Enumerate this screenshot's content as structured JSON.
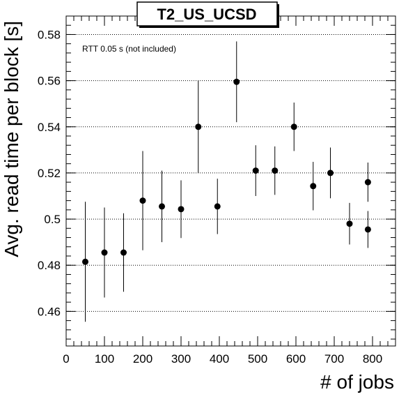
{
  "chart_data": {
    "type": "scatter",
    "title": "T2_US_UCSD",
    "xlabel": "# of jobs",
    "ylabel": "Avg. read time per block [s]",
    "annotation": "RTT 0.05 s (not included)",
    "xlim": [
      0,
      860
    ],
    "ylim": [
      0.445,
      0.588
    ],
    "xticks": [
      0,
      100,
      200,
      300,
      400,
      500,
      600,
      700,
      800
    ],
    "xtick_labels": [
      "0",
      "100",
      "200",
      "300",
      "400",
      "500",
      "600",
      "700",
      "800"
    ],
    "yticks": [
      0.46,
      0.48,
      0.5,
      0.52,
      0.54,
      0.56,
      0.58
    ],
    "ytick_labels": [
      "0.46",
      "0.48",
      "0.5",
      "0.52",
      "0.54",
      "0.56",
      "0.58"
    ],
    "grid": "horizontal dotted",
    "series": [
      {
        "points": [
          {
            "x": 50,
            "y": 0.4815,
            "err": 0.026
          },
          {
            "x": 100,
            "y": 0.4855,
            "err": 0.0195
          },
          {
            "x": 150,
            "y": 0.4855,
            "err": 0.017
          },
          {
            "x": 200,
            "y": 0.508,
            "err": 0.0215
          },
          {
            "x": 250,
            "y": 0.5055,
            "err": 0.0155
          },
          {
            "x": 300,
            "y": 0.5043,
            "err": 0.0125
          },
          {
            "x": 345,
            "y": 0.54,
            "err": 0.02
          },
          {
            "x": 395,
            "y": 0.5055,
            "err": 0.012
          },
          {
            "x": 445,
            "y": 0.5595,
            "err": 0.0175
          },
          {
            "x": 495,
            "y": 0.521,
            "err": 0.011
          },
          {
            "x": 545,
            "y": 0.521,
            "err": 0.0105
          },
          {
            "x": 595,
            "y": 0.54,
            "err": 0.0105
          },
          {
            "x": 645,
            "y": 0.5143,
            "err": 0.0105
          },
          {
            "x": 690,
            "y": 0.52,
            "err": 0.011
          },
          {
            "x": 740,
            "y": 0.498,
            "err": 0.009
          },
          {
            "x": 788,
            "y": 0.516,
            "err": 0.0085
          },
          {
            "x": 788,
            "y": 0.4955,
            "err": 0.008
          }
        ]
      }
    ]
  }
}
